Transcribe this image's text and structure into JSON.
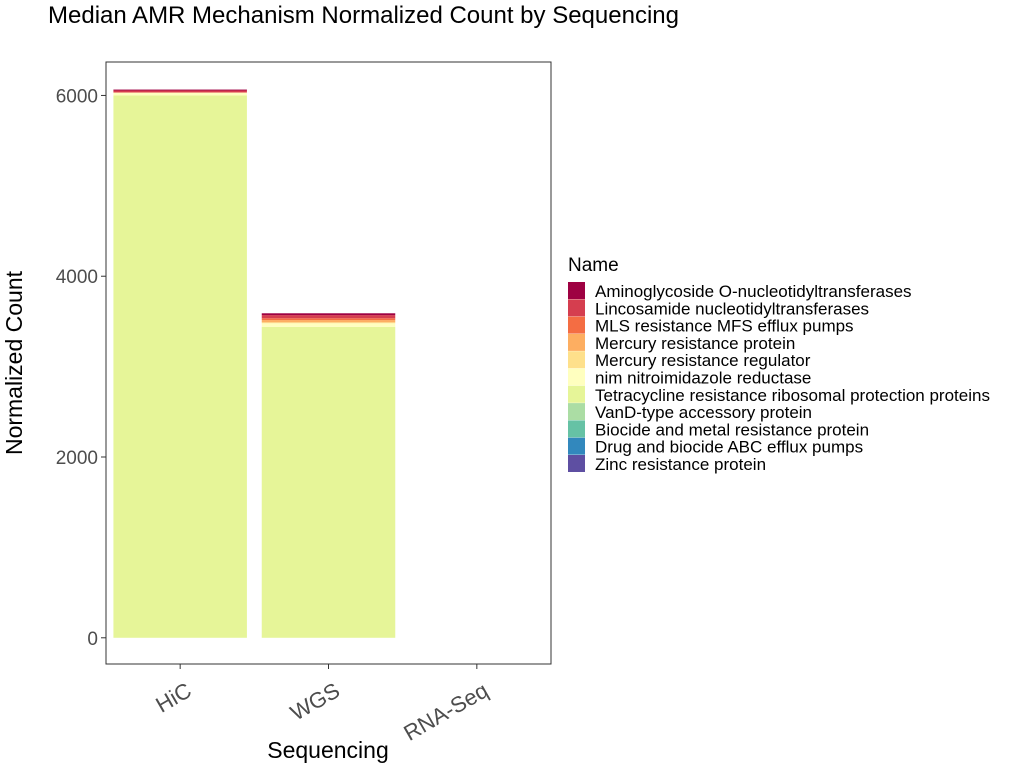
{
  "chart_data": {
    "type": "bar",
    "stacked": true,
    "title": "Median AMR Mechanism Normalized Count by Sequencing",
    "xlabel": "Sequencing",
    "ylabel": "Normalized Count",
    "categories": [
      "HiC",
      "WGS",
      "RNA-Seq"
    ],
    "ylim": [
      -290,
      6370
    ],
    "yticks": [
      0,
      2000,
      4000,
      6000
    ],
    "grid": false,
    "legend_title": "Name",
    "legend_position": "right",
    "series": [
      {
        "name": "Aminoglycoside O-nucleotidyltransferases",
        "color": "#9E0142",
        "values": [
          10,
          20,
          0
        ]
      },
      {
        "name": "Lincosamide nucleotidyltransferases",
        "color": "#D53E4F",
        "values": [
          20,
          35,
          0
        ]
      },
      {
        "name": "MLS resistance MFS efflux pumps",
        "color": "#F46D43",
        "values": [
          5,
          20,
          0
        ]
      },
      {
        "name": "Mercury resistance protein",
        "color": "#FDAE61",
        "values": [
          0,
          25,
          0
        ]
      },
      {
        "name": "Mercury resistance regulator",
        "color": "#FEE08B",
        "values": [
          0,
          10,
          0
        ]
      },
      {
        "name": "nim nitroimidazole reductase",
        "color": "#FFFFBF",
        "values": [
          30,
          40,
          0
        ]
      },
      {
        "name": "Tetracycline resistance ribosomal protection proteins",
        "color": "#E6F598",
        "values": [
          6000,
          3440,
          0
        ]
      },
      {
        "name": "VanD-type accessory protein",
        "color": "#ABDDA4",
        "values": [
          0,
          0,
          0
        ]
      },
      {
        "name": "Biocide and metal resistance protein",
        "color": "#66C2A5",
        "values": [
          0,
          0,
          0
        ]
      },
      {
        "name": "Drug and biocide ABC efflux pumps",
        "color": "#3288BD",
        "values": [
          0,
          0,
          0
        ]
      },
      {
        "name": "Zinc resistance protein",
        "color": "#5E4FA2",
        "values": [
          0,
          0,
          0
        ]
      }
    ]
  }
}
